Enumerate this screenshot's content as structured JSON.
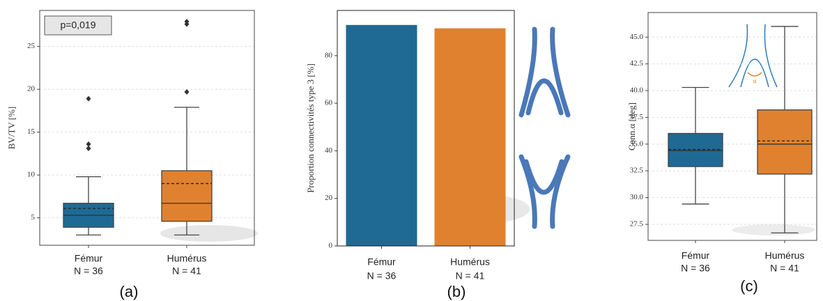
{
  "chart_data": [
    {
      "type": "box",
      "ylabel": "BV/TV [%]",
      "panel_label": "(a)",
      "annotation": "p=0,019",
      "categories": [
        "Fémur",
        "Humérus"
      ],
      "count_labels": [
        "N = 36",
        "N = 41"
      ],
      "ylim": [
        1.8,
        29.2
      ],
      "yticks": [
        5,
        10,
        15,
        20,
        25
      ],
      "grid": true,
      "boxes": [
        {
          "color": "#1f6a94",
          "whisker_low": 3.0,
          "q1": 3.9,
          "median": 5.3,
          "mean": 6.1,
          "q3": 6.7,
          "whisker_high": 9.8,
          "outliers": [
            13.1,
            13.6,
            18.9
          ]
        },
        {
          "color": "#e0812f",
          "whisker_low": 3.0,
          "q1": 4.6,
          "median": 6.7,
          "mean": 9.0,
          "q3": 10.5,
          "whisker_high": 17.9,
          "outliers": [
            19.7,
            27.6,
            27.9
          ]
        }
      ]
    },
    {
      "type": "bar",
      "ylabel": "Proportion connectivités type 3 [%]",
      "panel_label": "(b)",
      "categories": [
        "Fémur",
        "Humérus"
      ],
      "count_labels": [
        "N = 36",
        "N = 41"
      ],
      "ylim": [
        0,
        99
      ],
      "yticks": [
        0,
        20,
        40,
        60,
        80
      ],
      "grid": false,
      "values": [
        92.9,
        91.5
      ],
      "colors": [
        "#1f6a94",
        "#e0812f"
      ]
    },
    {
      "type": "box",
      "ylabel": "Conn.α [deg]",
      "panel_label": "(c)",
      "inset_label": "α",
      "categories": [
        "Fémur",
        "Humérus"
      ],
      "count_labels": [
        "N = 36",
        "N = 41"
      ],
      "ylim": [
        26.0,
        47.3
      ],
      "yticks": [
        {
          "value": 27.5,
          "label": "27.5"
        },
        {
          "value": 30,
          "label": "30.0"
        },
        {
          "value": 32.5,
          "label": "32.5"
        },
        {
          "value": 35,
          "label": "35.0"
        },
        {
          "value": 37.5,
          "label": "37.5"
        },
        {
          "value": 40,
          "label": "40.0"
        },
        {
          "value": 42.5,
          "label": "42.5"
        },
        {
          "value": 45,
          "label": "45.0"
        }
      ],
      "grid": true,
      "boxes": [
        {
          "color": "#1f6a94",
          "whisker_low": 29.4,
          "q1": 32.9,
          "median": 34.4,
          "mean": 34.5,
          "q3": 36.0,
          "whisker_high": 40.3,
          "outliers": []
        },
        {
          "color": "#e0812f",
          "whisker_low": 26.7,
          "q1": 32.2,
          "median": 35.0,
          "mean": 35.3,
          "q3": 38.2,
          "whisker_high": 46.0,
          "outliers": []
        }
      ]
    }
  ]
}
